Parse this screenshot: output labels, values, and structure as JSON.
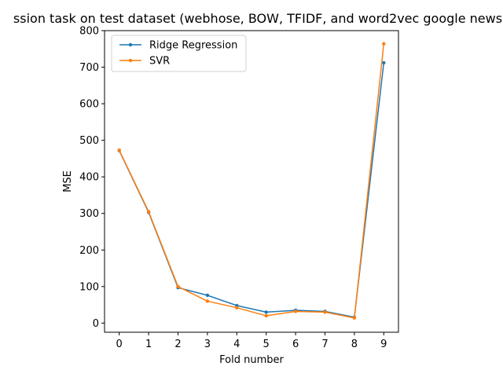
{
  "chart_data": {
    "type": "line",
    "title": "ssion task on test dataset (webhose, BOW, TFIDF, and word2vec google news",
    "xlabel": "Fold number",
    "ylabel": "MSE",
    "x": [
      0,
      1,
      2,
      3,
      4,
      5,
      6,
      7,
      8,
      9
    ],
    "xlim": [
      -0.5,
      9.5
    ],
    "ylim": [
      -25,
      800
    ],
    "xticks": [
      "0",
      "1",
      "2",
      "3",
      "4",
      "5",
      "6",
      "7",
      "8",
      "9"
    ],
    "yticks": [
      "0",
      "100",
      "200",
      "300",
      "400",
      "500",
      "600",
      "700",
      "800"
    ],
    "grid": false,
    "legend_position": "top-left",
    "series": [
      {
        "name": "Ridge Regression",
        "color": "#1f77b4",
        "marker": "point",
        "values": [
          472,
          303,
          97,
          76,
          48,
          30,
          35,
          32,
          16,
          712
        ]
      },
      {
        "name": "SVR",
        "color": "#ff7f0e",
        "marker": "point",
        "values": [
          473,
          305,
          100,
          60,
          42,
          20,
          32,
          30,
          14,
          764
        ]
      }
    ]
  }
}
